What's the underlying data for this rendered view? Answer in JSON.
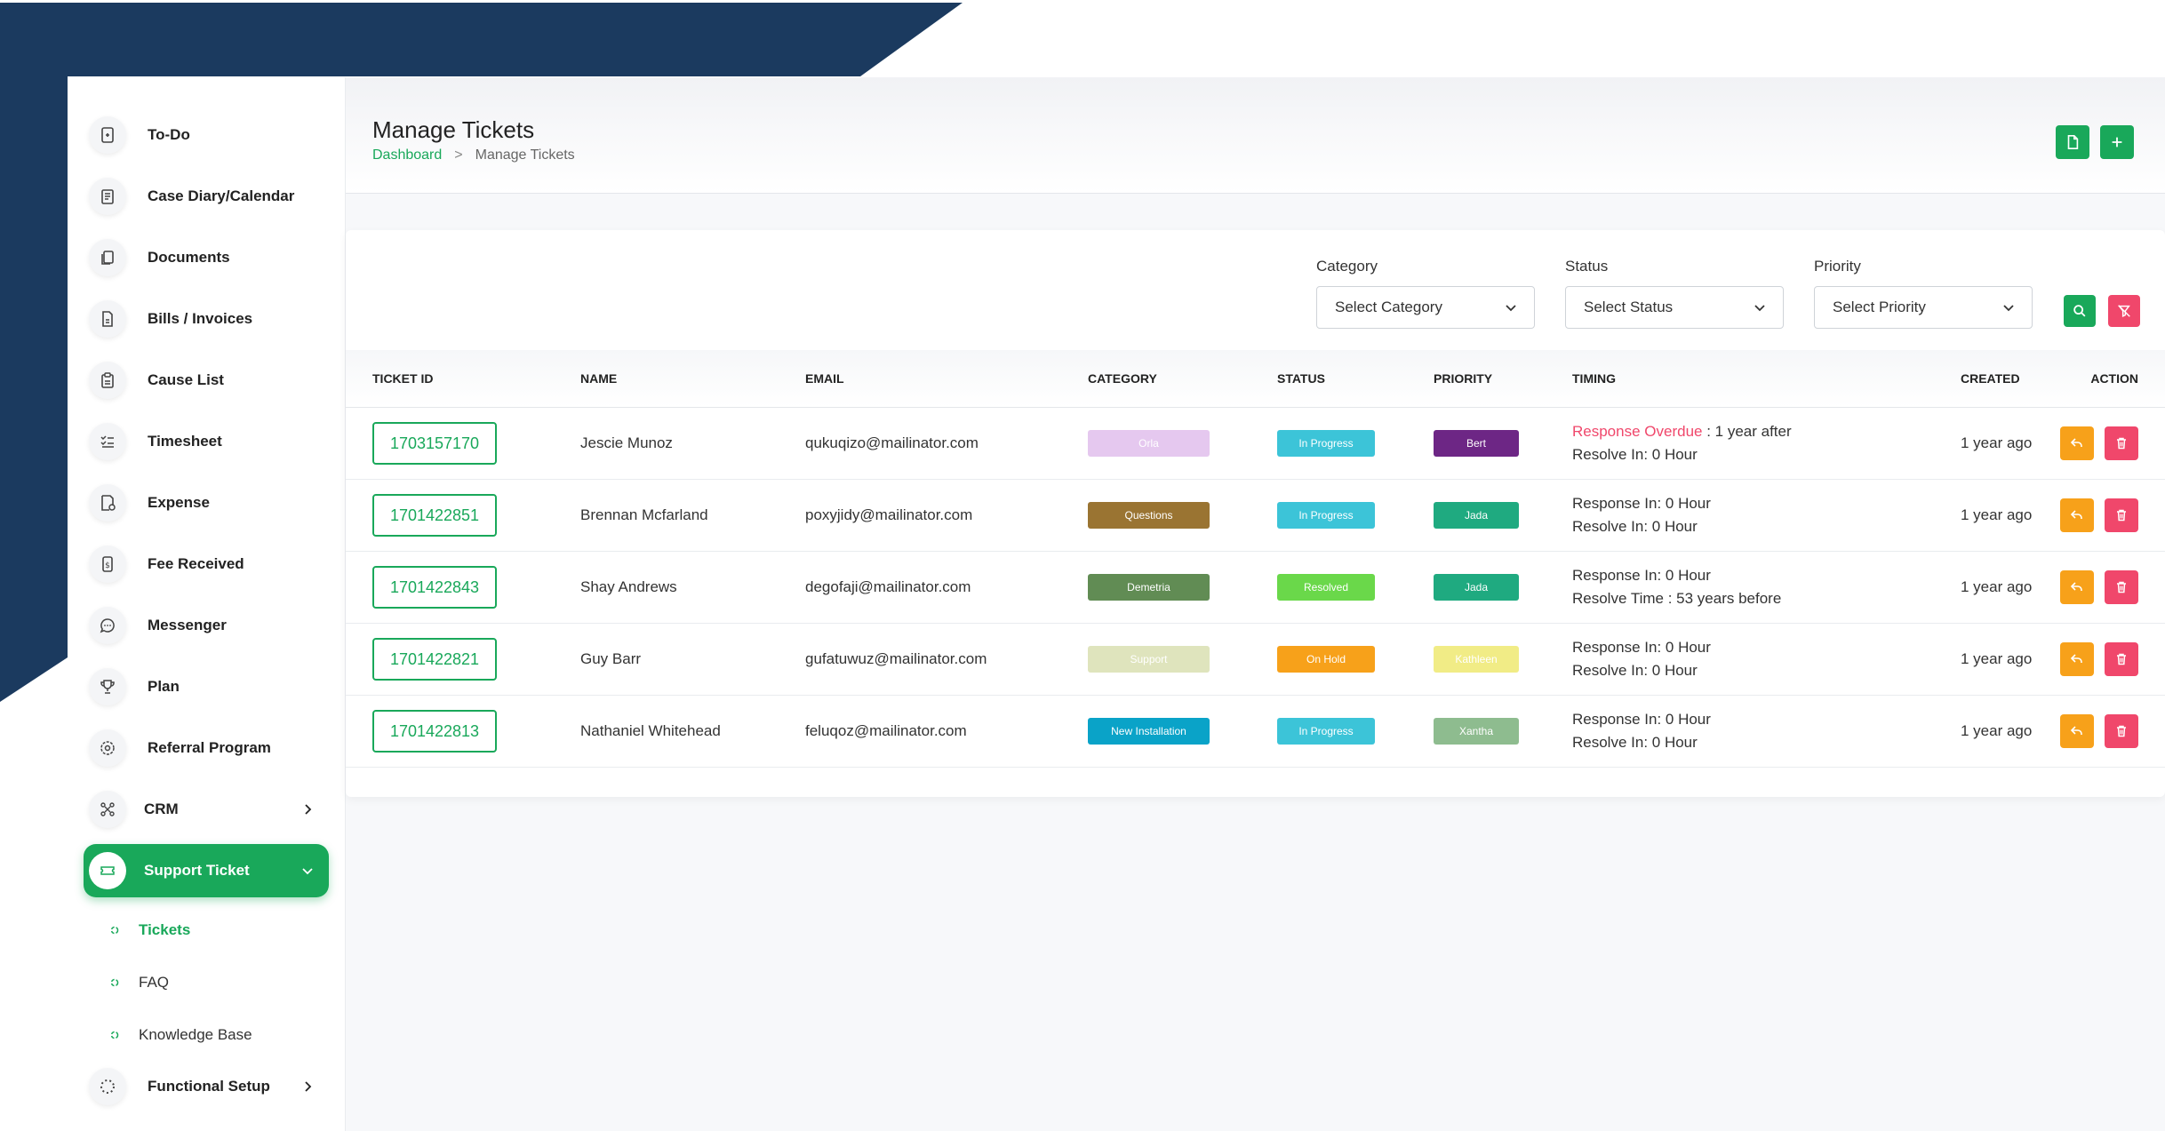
{
  "colors": {
    "brand_green": "#19a85a",
    "navy": "#1b3a5f",
    "overdue": "#f0476b",
    "edit": "#f7a11a",
    "delete": "#f0476b"
  },
  "sidebar": {
    "items": [
      {
        "label": "To-Do",
        "icon": "todo-icon"
      },
      {
        "label": "Case Diary/Calendar",
        "icon": "calendar-icon"
      },
      {
        "label": "Documents",
        "icon": "documents-icon"
      },
      {
        "label": "Bills / Invoices",
        "icon": "invoice-icon"
      },
      {
        "label": "Cause List",
        "icon": "clipboard-icon"
      },
      {
        "label": "Timesheet",
        "icon": "list-check-icon"
      },
      {
        "label": "Expense",
        "icon": "expense-icon"
      },
      {
        "label": "Fee Received",
        "icon": "money-icon"
      },
      {
        "label": "Messenger",
        "icon": "chat-icon"
      },
      {
        "label": "Plan",
        "icon": "trophy-icon"
      },
      {
        "label": "Referral Program",
        "icon": "referral-icon"
      },
      {
        "label": "CRM",
        "icon": "crm-icon"
      },
      {
        "label": "Support Ticket",
        "icon": "ticket-icon"
      },
      {
        "label": "Functional Setup",
        "icon": "setup-icon"
      }
    ],
    "sub_items": [
      {
        "label": "Tickets"
      },
      {
        "label": "FAQ"
      },
      {
        "label": "Knowledge Base"
      }
    ]
  },
  "header": {
    "title": "Manage Tickets",
    "breadcrumb_home": "Dashboard",
    "breadcrumb_sep": ">",
    "breadcrumb_current": "Manage Tickets"
  },
  "filters": {
    "category": {
      "label": "Category",
      "value": "Select Category"
    },
    "status": {
      "label": "Status",
      "value": "Select Status"
    },
    "priority": {
      "label": "Priority",
      "value": "Select Priority"
    }
  },
  "table": {
    "columns": [
      "TICKET ID",
      "NAME",
      "EMAIL",
      "CATEGORY",
      "STATUS",
      "PRIORITY",
      "TIMING",
      "CREATED",
      "ACTION"
    ],
    "rows": [
      {
        "id": "1703157170",
        "name": "Jescie Munoz",
        "email": "qukuqizo@mailinator.com",
        "category": "Orla",
        "category_bg": "#e5c8ef",
        "category_fg": "#ffffff",
        "status": "In Progress",
        "status_bg": "#3cc4d8",
        "priority": "Bert",
        "priority_bg": "#6d2685",
        "priority_fg": "#ffffff",
        "timing1_prefix": "Response Overdue",
        "timing1_rest": " : 1 year after",
        "timing2": "Resolve In: 0 Hour",
        "created": "1 year ago"
      },
      {
        "id": "1701422851",
        "name": "Brennan Mcfarland",
        "email": "poxyjidy@mailinator.com",
        "category": "Questions",
        "category_bg": "#9a7432",
        "category_fg": "#ffffff",
        "status": "In Progress",
        "status_bg": "#3cc4d8",
        "priority": "Jada",
        "priority_bg": "#1faa80",
        "priority_fg": "#ffffff",
        "timing1_prefix": "",
        "timing1_rest": "Response In: 0 Hour",
        "timing2": "Resolve In: 0 Hour",
        "created": "1 year ago"
      },
      {
        "id": "1701422843",
        "name": "Shay Andrews",
        "email": "degofaji@mailinator.com",
        "category": "Demetria",
        "category_bg": "#618c54",
        "category_fg": "#ffffff",
        "status": "Resolved",
        "status_bg": "#6ad84a",
        "priority": "Jada",
        "priority_bg": "#1faa80",
        "priority_fg": "#ffffff",
        "timing1_prefix": "",
        "timing1_rest": "Response In: 0 Hour",
        "timing2": "Resolve Time : 53 years before",
        "created": "1 year ago"
      },
      {
        "id": "1701422821",
        "name": "Guy Barr",
        "email": "gufatuwuz@mailinator.com",
        "category": "Support",
        "category_bg": "#dfe4bd",
        "category_fg": "#ffffff",
        "status": "On Hold",
        "status_bg": "#f7a11a",
        "priority": "Kathleen",
        "priority_bg": "#f1ec86",
        "priority_fg": "#ffffff",
        "timing1_prefix": "",
        "timing1_rest": "Response In: 0 Hour",
        "timing2": "Resolve In: 0 Hour",
        "created": "1 year ago"
      },
      {
        "id": "1701422813",
        "name": "Nathaniel Whitehead",
        "email": "feluqoz@mailinator.com",
        "category": "New Installation",
        "category_bg": "#0aa3c8",
        "category_fg": "#ffffff",
        "status": "In Progress",
        "status_bg": "#3cc4d8",
        "priority": "Xantha",
        "priority_bg": "#8ebc8f",
        "priority_fg": "#ffffff",
        "timing1_prefix": "",
        "timing1_rest": "Response In: 0 Hour",
        "timing2": "Resolve In: 0 Hour",
        "created": "1 year ago"
      }
    ]
  }
}
